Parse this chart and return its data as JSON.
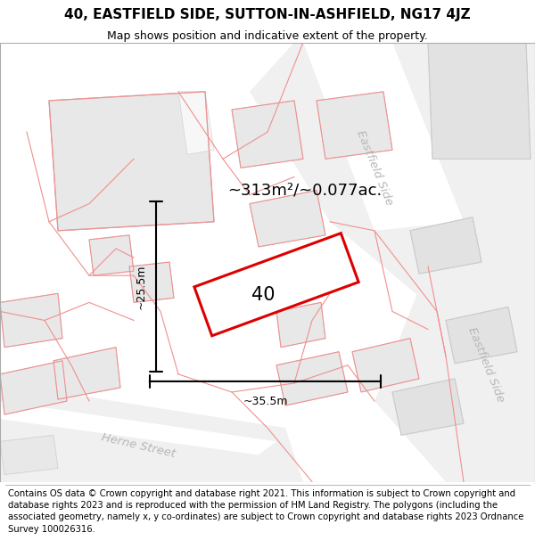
{
  "title": "40, EASTFIELD SIDE, SUTTON-IN-ASHFIELD, NG17 4JZ",
  "subtitle": "Map shows position and indicative extent of the property.",
  "footer": "Contains OS data © Crown copyright and database right 2021. This information is subject to Crown copyright and database rights 2023 and is reproduced with the permission of HM Land Registry. The polygons (including the associated geometry, namely x, y co-ordinates) are subject to Crown copyright and database rights 2023 Ordnance Survey 100026316.",
  "bg_color": "#ffffff",
  "map_bg": "#f7f7f7",
  "road_bg": "#ffffff",
  "building_fill": "#e8e8e8",
  "building_edge": "#cccccc",
  "pink_stroke": "#f09090",
  "red_stroke": "#dd0000",
  "gray_stroke": "#cccccc",
  "area_text": "~313m²/~0.077ac.",
  "label_40": "40",
  "dim_width": "~35.5m",
  "dim_height": "~25.5m",
  "street_eastfield1": "Eastfield Side",
  "street_eastfield2": "Eastfield Side",
  "street_herne": "Herne Street",
  "title_fontsize": 11,
  "subtitle_fontsize": 9,
  "footer_fontsize": 7.2,
  "street_fontsize": 9.5
}
